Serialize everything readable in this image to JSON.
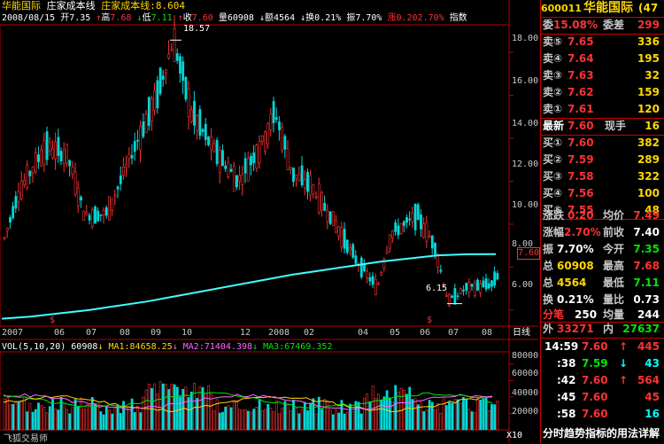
{
  "header": {
    "stock_name": "华能国际",
    "indicators": "庄家成本线",
    "cost_line_label": "庄家成本线:",
    "cost_line_value": "8.604",
    "date": "2008/08/15",
    "open_label": "开",
    "open": "7.35",
    "high_label": "高",
    "high": "7.68",
    "low_label": "低",
    "low": "7.11",
    "close_label": "收",
    "close": "7.60",
    "volume_label": "量",
    "volume": "60908",
    "amount_label": "额",
    "amount": "4564",
    "turnover_label": "换",
    "turnover": "0.21%",
    "amplitude_label": "振",
    "amplitude": "7.70%",
    "change_label": "涨",
    "change": "0.20",
    "change_pct": "2.70%",
    "index_label": "指数"
  },
  "volume_header": {
    "params": "VOL(5,10,20)",
    "vol": "60908",
    "ma1": "MA1:84658.25",
    "ma2": "MA2:71404.398",
    "ma3": "MA3:67469.352"
  },
  "current_price_tag": "7.60",
  "x_axis_label": "日线",
  "x10_label": "X10",
  "source_label": "飞狐交易师",
  "watermark": "分时趋势指标的用法详解",
  "chart_data": {
    "type": "candlestick",
    "title": "华能国际",
    "price_ticks": [
      "18.00",
      "16.00",
      "14.00",
      "12.00",
      "10.00",
      "8.00",
      "6.00"
    ],
    "price_ylim": [
      5.5,
      19.2
    ],
    "annotations": {
      "high": "18.57",
      "low": "6.15"
    },
    "months": [
      "2007",
      "06",
      "07",
      "08",
      "09",
      "10",
      "12",
      "2008",
      "02",
      "04",
      "05",
      "06",
      "07",
      "08"
    ],
    "cost_line": [
      5.6,
      5.7,
      5.85,
      6.0,
      6.2,
      6.4,
      6.65,
      6.9,
      7.15,
      7.4,
      7.65,
      7.85,
      8.05,
      8.25,
      8.4,
      8.55,
      8.6,
      8.604
    ],
    "volume_ticks": [
      "80000",
      "60000",
      "40000",
      "20000"
    ],
    "volume_ylim": [
      0,
      95000
    ]
  },
  "panel": {
    "code": "600011",
    "name": "华能国际",
    "suffix": "(47",
    "weibi_label": "委",
    "weibi": "15.08%",
    "weicha_label": "委差",
    "weicha": "299",
    "sells": [
      {
        "label": "卖⑤",
        "price": "7.65",
        "vol": "336"
      },
      {
        "label": "卖④",
        "price": "7.64",
        "vol": "195"
      },
      {
        "label": "卖③",
        "price": "7.63",
        "vol": "32"
      },
      {
        "label": "卖②",
        "price": "7.62",
        "vol": "159"
      },
      {
        "label": "卖①",
        "price": "7.61",
        "vol": "120"
      }
    ],
    "latest_label": "最新",
    "latest": "7.60",
    "cur_hand_label": "现手",
    "cur_hand": "16",
    "buys": [
      {
        "label": "买①",
        "price": "7.60",
        "vol": "382"
      },
      {
        "label": "买②",
        "price": "7.59",
        "vol": "289"
      },
      {
        "label": "买③",
        "price": "7.58",
        "vol": "322"
      },
      {
        "label": "买④",
        "price": "7.56",
        "vol": "100"
      },
      {
        "label": "买⑤",
        "price": "7.55",
        "vol": "48"
      }
    ],
    "stats": [
      {
        "l1": "涨跌",
        "v1": "0.20",
        "l2": "均价",
        "v2": "7.49"
      },
      {
        "l1": "涨幅",
        "v1": "2.70%",
        "l2": "前收",
        "v2": "7.40"
      },
      {
        "l1": "振",
        "v1": "7.70%",
        "l2": "今开",
        "v2": "7.35"
      },
      {
        "l1": "总",
        "v1": "60908",
        "l2": "最高",
        "v2": "7.68"
      },
      {
        "l1": "总",
        "v1": "4564",
        "l2": "最低",
        "v2": "7.11"
      },
      {
        "l1": "换",
        "v1": "0.21%",
        "l2": "量比",
        "v2": "0.73"
      },
      {
        "l1": "分笔",
        "v1": "250",
        "l2": "均量",
        "v2": "244"
      }
    ],
    "outer_label": "外",
    "outer": "33271",
    "inner_label": "内",
    "inner": "27637",
    "ticks": [
      {
        "time": "14:59",
        "price": "7.60",
        "arrow": "↑",
        "vol": "445"
      },
      {
        "time": ":38",
        "price": "7.59",
        "arrow": "↓",
        "vol": "43"
      },
      {
        "time": ":42",
        "price": "7.60",
        "arrow": "↑",
        "vol": "564"
      },
      {
        "time": ":45",
        "price": "7.60",
        "arrow": "",
        "vol": "45"
      },
      {
        "time": ":58",
        "price": "7.60",
        "arrow": "",
        "vol": "16"
      }
    ]
  }
}
